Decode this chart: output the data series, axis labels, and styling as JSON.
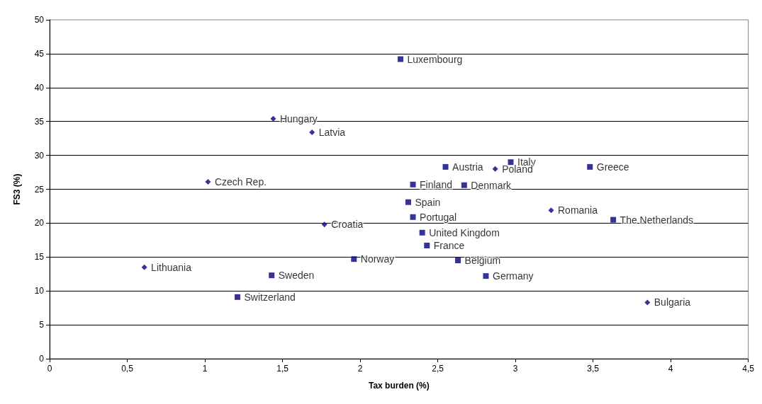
{
  "chart_data": {
    "type": "scatter",
    "xlabel": "Tax burden (%)",
    "ylabel": "FS3 (%)",
    "xlim": [
      0,
      4.5
    ],
    "xticks": [
      0,
      {
        "value": 0.5,
        "label": "0,5"
      },
      1,
      {
        "value": 1.5,
        "label": "1,5"
      },
      2,
      {
        "value": 2.5,
        "label": "2,5"
      },
      3,
      {
        "value": 3.5,
        "label": "3,5"
      },
      4,
      {
        "value": 4.5,
        "label": "4,5"
      }
    ],
    "ylim": [
      0,
      50
    ],
    "yticks": [
      0,
      5,
      10,
      15,
      20,
      25,
      30,
      35,
      40,
      45,
      50
    ],
    "grid": "y",
    "series": [
      {
        "color": "#000080",
        "marker": "square",
        "x": [
          2.26,
          2.34,
          2.55,
          2.97,
          3.48,
          2.67,
          2.31,
          2.34,
          2.4,
          2.43,
          1.96,
          2.63,
          2.81,
          1.43,
          1.21,
          3.63
        ],
        "values": [
          44.2,
          25.7,
          28.3,
          29.0,
          28.3,
          25.6,
          23.1,
          20.9,
          18.6,
          16.7,
          14.7,
          14.5,
          12.2,
          12.3,
          9.1,
          20.5
        ]
      },
      {
        "color": "#000080",
        "marker": "diamond",
        "x": [
          1.44,
          1.69,
          1.02,
          1.77,
          0.61,
          2.87,
          3.23,
          3.85
        ],
        "values": [
          35.4,
          33.4,
          26.1,
          19.8,
          13.5,
          28.0,
          21.9,
          8.3
        ]
      }
    ],
    "annotations": [
      {
        "text": "Luxembourg",
        "x": 2.26,
        "y": 44.2
      },
      {
        "text": "Finland",
        "x": 2.34,
        "y": 25.7
      },
      {
        "text": "Austria",
        "x": 2.55,
        "y": 28.3
      },
      {
        "text": "Italy",
        "x": 2.97,
        "y": 29.0
      },
      {
        "text": "Greece",
        "x": 3.48,
        "y": 28.3
      },
      {
        "text": "Denmark",
        "x": 2.67,
        "y": 25.6
      },
      {
        "text": "Spain",
        "x": 2.31,
        "y": 23.1
      },
      {
        "text": "Portugal",
        "x": 2.34,
        "y": 20.9
      },
      {
        "text": "United Kingdom",
        "x": 2.4,
        "y": 18.6
      },
      {
        "text": "France",
        "x": 2.43,
        "y": 16.7
      },
      {
        "text": "Norway",
        "x": 1.96,
        "y": 14.7
      },
      {
        "text": "Belgium",
        "x": 2.63,
        "y": 14.5
      },
      {
        "text": "Germany",
        "x": 2.81,
        "y": 12.2
      },
      {
        "text": "Sweden",
        "x": 1.43,
        "y": 12.3
      },
      {
        "text": "Switzerland",
        "x": 1.21,
        "y": 9.1
      },
      {
        "text": "The Netherlands",
        "x": 3.63,
        "y": 20.5
      },
      {
        "text": "Hungary",
        "x": 1.44,
        "y": 35.4
      },
      {
        "text": "Latvia",
        "x": 1.69,
        "y": 33.4
      },
      {
        "text": "Czech Rep.",
        "x": 1.02,
        "y": 26.1
      },
      {
        "text": "Croatia",
        "x": 1.77,
        "y": 19.8
      },
      {
        "text": "Lithuania",
        "x": 0.61,
        "y": 13.5
      },
      {
        "text": "Poland",
        "x": 2.87,
        "y": 28.0
      },
      {
        "text": "Romania",
        "x": 3.23,
        "y": 21.9
      },
      {
        "text": "Bulgaria",
        "x": 3.85,
        "y": 8.3
      }
    ]
  }
}
